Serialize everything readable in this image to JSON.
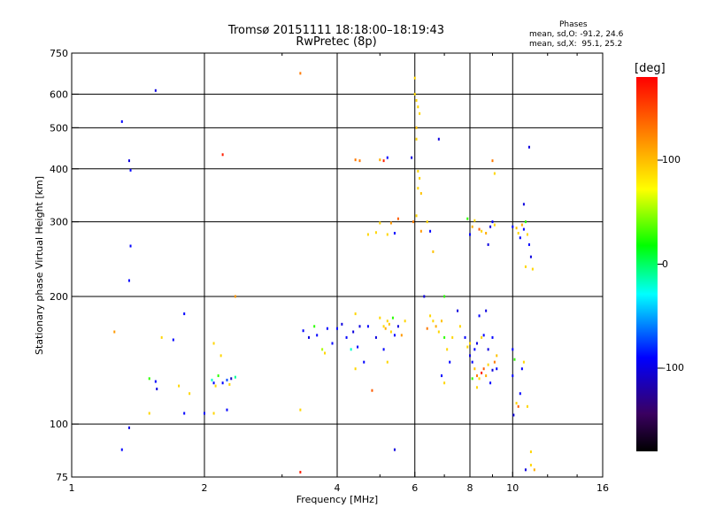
{
  "header": {
    "title_line1": "Tromsø 20151111 18:18:00–18:19:43",
    "title_line2": "RwPretec (8p)",
    "stats_title": "Phases",
    "stats_o": "mean, sd,O: -91.2, 24.6",
    "stats_x": "mean, sd,X:  95.1, 25.2"
  },
  "colorbar": {
    "unit": "[deg]",
    "ticks": [
      {
        "value": 100,
        "label": "100"
      },
      {
        "value": 0,
        "label": "0"
      },
      {
        "value": -100,
        "label": "-100"
      }
    ],
    "range": [
      -180,
      180
    ],
    "colors": [
      "#000000",
      "#3a0060",
      "#0000ff",
      "#00ffff",
      "#00ff00",
      "#ffff00",
      "#ff9900",
      "#ff0000"
    ]
  },
  "chart_data": {
    "type": "scatter",
    "title": "Tromsø 20151111 18:18:00–18:19:43",
    "subtitle": "RwPretec (8p)",
    "xlabel": "Frequency [MHz]",
    "ylabel": "Stationary phase Virtual Height [km]",
    "xscale": "log",
    "yscale": "log",
    "xlim": [
      1,
      16
    ],
    "ylim": [
      75,
      750
    ],
    "xticks": [
      1,
      2,
      4,
      6,
      8,
      10,
      16
    ],
    "xtick_labels": [
      "1",
      "2",
      "4",
      "6",
      "8",
      "10",
      "16"
    ],
    "yticks": [
      75,
      100,
      200,
      300,
      400,
      500,
      600,
      750
    ],
    "ytick_labels": [
      "75",
      "100",
      "200",
      "300",
      "400",
      "500",
      "600",
      "750"
    ],
    "grid": true,
    "colorbar_label": "[deg]",
    "points": [
      [
        1.3,
        517,
        -100
      ],
      [
        1.35,
        418,
        -110
      ],
      [
        1.36,
        397,
        -100
      ],
      [
        1.55,
        612,
        -110
      ],
      [
        1.36,
        263,
        -100
      ],
      [
        1.35,
        218,
        -100
      ],
      [
        1.25,
        165,
        130
      ],
      [
        1.3,
        87,
        -100
      ],
      [
        1.35,
        98,
        -110
      ],
      [
        1.5,
        128,
        30
      ],
      [
        1.55,
        126,
        -100
      ],
      [
        1.56,
        121,
        -110
      ],
      [
        1.5,
        106,
        100
      ],
      [
        1.6,
        160,
        100
      ],
      [
        1.7,
        158,
        -100
      ],
      [
        1.75,
        123,
        100
      ],
      [
        1.8,
        106,
        -100
      ],
      [
        1.8,
        182,
        -100
      ],
      [
        1.85,
        118,
        100
      ],
      [
        2.0,
        106,
        -100
      ],
      [
        2.1,
        125,
        -100
      ],
      [
        2.08,
        127,
        -20
      ],
      [
        2.12,
        123,
        100
      ],
      [
        2.15,
        130,
        30
      ],
      [
        2.2,
        125,
        -100
      ],
      [
        2.25,
        127,
        -80
      ],
      [
        2.28,
        124,
        100
      ],
      [
        2.3,
        128,
        -120
      ],
      [
        2.35,
        129,
        -10
      ],
      [
        2.18,
        145,
        100
      ],
      [
        2.1,
        155,
        100
      ],
      [
        2.25,
        108,
        -100
      ],
      [
        2.1,
        106,
        100
      ],
      [
        2.35,
        200,
        130
      ],
      [
        2.2,
        432,
        170
      ],
      [
        3.3,
        672,
        140
      ],
      [
        3.3,
        77,
        170
      ],
      [
        3.3,
        108,
        100
      ],
      [
        3.35,
        166,
        -100
      ],
      [
        3.45,
        160,
        -110
      ],
      [
        3.55,
        170,
        30
      ],
      [
        3.6,
        162,
        -100
      ],
      [
        3.7,
        150,
        60
      ],
      [
        3.75,
        147,
        100
      ],
      [
        3.8,
        168,
        -100
      ],
      [
        3.9,
        155,
        -100
      ],
      [
        4.0,
        168,
        -100
      ],
      [
        4.1,
        172,
        -110
      ],
      [
        4.2,
        160,
        -100
      ],
      [
        4.3,
        150,
        -20
      ],
      [
        4.35,
        165,
        -110
      ],
      [
        4.4,
        182,
        100
      ],
      [
        4.45,
        152,
        -100
      ],
      [
        4.5,
        170,
        -110
      ],
      [
        4.6,
        140,
        -100
      ],
      [
        4.4,
        135,
        100
      ],
      [
        4.7,
        170,
        -100
      ],
      [
        4.8,
        120,
        150
      ],
      [
        4.9,
        160,
        -110
      ],
      [
        5.0,
        178,
        100
      ],
      [
        5.1,
        170,
        100
      ],
      [
        5.15,
        168,
        120
      ],
      [
        5.2,
        175,
        100
      ],
      [
        5.25,
        172,
        110
      ],
      [
        5.3,
        165,
        100
      ],
      [
        5.35,
        178,
        30
      ],
      [
        5.4,
        162,
        -100
      ],
      [
        5.5,
        170,
        -110
      ],
      [
        5.6,
        162,
        130
      ],
      [
        5.7,
        175,
        100
      ],
      [
        5.1,
        150,
        -100
      ],
      [
        5.2,
        140,
        100
      ],
      [
        4.5,
        418,
        140
      ],
      [
        4.4,
        420,
        140
      ],
      [
        5.0,
        420,
        120
      ],
      [
        5.1,
        418,
        170
      ],
      [
        5.2,
        425,
        -100
      ],
      [
        4.7,
        280,
        100
      ],
      [
        4.9,
        283,
        100
      ],
      [
        5.0,
        298,
        100
      ],
      [
        5.3,
        298,
        130
      ],
      [
        5.4,
        282,
        -100
      ],
      [
        5.5,
        305,
        150
      ],
      [
        5.2,
        280,
        100
      ],
      [
        5.4,
        87,
        -110
      ],
      [
        5.9,
        425,
        -110
      ],
      [
        6.0,
        655,
        100
      ],
      [
        6.0,
        600,
        100
      ],
      [
        6.05,
        580,
        100
      ],
      [
        6.1,
        560,
        100
      ],
      [
        6.15,
        540,
        100
      ],
      [
        6.05,
        500,
        110
      ],
      [
        6.05,
        470,
        100
      ],
      [
        6.1,
        395,
        100
      ],
      [
        6.15,
        380,
        100
      ],
      [
        6.1,
        360,
        100
      ],
      [
        6.2,
        350,
        110
      ],
      [
        6.05,
        310,
        100
      ],
      [
        5.95,
        300,
        140
      ],
      [
        6.2,
        285,
        130
      ],
      [
        6.4,
        300,
        100
      ],
      [
        6.5,
        285,
        -100
      ],
      [
        6.6,
        255,
        110
      ],
      [
        6.8,
        470,
        -110
      ],
      [
        6.3,
        200,
        -110
      ],
      [
        6.5,
        180,
        100
      ],
      [
        6.6,
        175,
        100
      ],
      [
        6.7,
        170,
        120
      ],
      [
        6.8,
        165,
        100
      ],
      [
        6.9,
        175,
        110
      ],
      [
        7.0,
        160,
        30
      ],
      [
        7.1,
        150,
        100
      ],
      [
        7.2,
        140,
        -100
      ],
      [
        7.3,
        160,
        100
      ],
      [
        6.9,
        130,
        -100
      ],
      [
        7.0,
        125,
        100
      ],
      [
        7.0,
        200,
        30
      ],
      [
        6.4,
        168,
        140
      ],
      [
        7.5,
        185,
        -110
      ],
      [
        7.6,
        170,
        100
      ],
      [
        7.8,
        160,
        -100
      ],
      [
        7.9,
        152,
        100
      ],
      [
        8.0,
        145,
        -110
      ],
      [
        8.1,
        140,
        -100
      ],
      [
        8.2,
        135,
        110
      ],
      [
        8.3,
        130,
        140
      ],
      [
        8.4,
        128,
        100
      ],
      [
        8.5,
        132,
        170
      ],
      [
        8.6,
        135,
        150
      ],
      [
        8.7,
        130,
        120
      ],
      [
        8.8,
        138,
        100
      ],
      [
        8.9,
        125,
        -100
      ],
      [
        9.0,
        134,
        -110
      ],
      [
        9.1,
        140,
        140
      ],
      [
        9.2,
        145,
        110
      ],
      [
        8.2,
        150,
        -100
      ],
      [
        8.3,
        155,
        -110
      ],
      [
        8.5,
        160,
        100
      ],
      [
        8.6,
        162,
        -100
      ],
      [
        8.8,
        150,
        -110
      ],
      [
        9.0,
        160,
        -100
      ],
      [
        9.2,
        135,
        -100
      ],
      [
        8.1,
        128,
        30
      ],
      [
        8.3,
        122,
        100
      ],
      [
        8.7,
        185,
        -110
      ],
      [
        8.4,
        180,
        -100
      ],
      [
        8.0,
        280,
        -100
      ],
      [
        8.1,
        292,
        120
      ],
      [
        8.2,
        302,
        100
      ],
      [
        8.4,
        288,
        150
      ],
      [
        8.5,
        285,
        100
      ],
      [
        8.7,
        282,
        120
      ],
      [
        8.9,
        292,
        -110
      ],
      [
        9.0,
        300,
        -100
      ],
      [
        9.1,
        295,
        100
      ],
      [
        8.8,
        265,
        -110
      ],
      [
        9.1,
        390,
        100
      ],
      [
        9.0,
        418,
        140
      ],
      [
        7.9,
        305,
        30
      ],
      [
        8.0,
        155,
        100
      ],
      [
        10.0,
        292,
        -100
      ],
      [
        10.2,
        290,
        110
      ],
      [
        10.3,
        282,
        100
      ],
      [
        10.5,
        295,
        120
      ],
      [
        10.6,
        288,
        -100
      ],
      [
        10.7,
        300,
        30
      ],
      [
        10.8,
        280,
        100
      ],
      [
        10.9,
        265,
        -100
      ],
      [
        11.0,
        248,
        -110
      ],
      [
        10.7,
        235,
        100
      ],
      [
        10.4,
        275,
        -100
      ],
      [
        10.6,
        330,
        -110
      ],
      [
        10.9,
        450,
        -110
      ],
      [
        10.0,
        150,
        -100
      ],
      [
        10.1,
        142,
        30
      ],
      [
        10.0,
        130,
        -100
      ],
      [
        10.05,
        105,
        -110
      ],
      [
        10.2,
        112,
        100
      ],
      [
        10.4,
        118,
        -100
      ],
      [
        10.8,
        110,
        100
      ],
      [
        10.7,
        78,
        -110
      ],
      [
        11.0,
        80,
        100
      ],
      [
        11.2,
        78,
        120
      ],
      [
        11.0,
        86,
        100
      ],
      [
        10.3,
        110,
        150
      ],
      [
        10.5,
        135,
        -100
      ],
      [
        10.6,
        140,
        100
      ],
      [
        11.1,
        232,
        100
      ]
    ]
  }
}
